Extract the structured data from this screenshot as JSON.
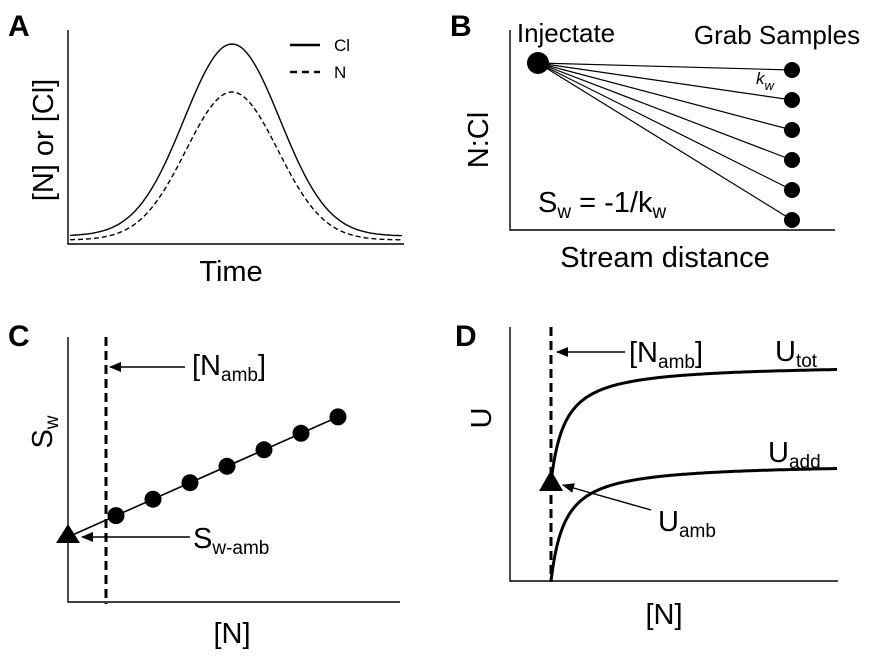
{
  "panelA": {
    "letter": "A",
    "ylabel": "[N] or [Cl]",
    "xlabel": "Time",
    "legend": [
      {
        "name": "Cl",
        "style": "solid"
      },
      {
        "name": "N",
        "style": "dashed"
      }
    ]
  },
  "panelB": {
    "letter": "B",
    "ylabel": "N:Cl",
    "xlabel": "Stream distance",
    "injectate_label": "Injectate",
    "samples_label": "Grab Samples",
    "kw_main": "k",
    "kw_sub": "w",
    "eq_s": "S",
    "eq_s_sub": "w",
    "eq_mid": " = -1/k",
    "eq_k_sub": "w",
    "sample_count": 6
  },
  "panelC": {
    "letter": "C",
    "ylabel_main": "S",
    "ylabel_sub": "w",
    "xlabel": "[N]",
    "namb_open": "[N",
    "namb_sub": "amb",
    "namb_close": "]",
    "swamb_main": "S",
    "swamb_sub": "w-amb",
    "point_count": 7
  },
  "panelD": {
    "letter": "D",
    "ylabel": "U",
    "xlabel": "[N]",
    "namb_open": "[N",
    "namb_sub": "amb",
    "namb_close": "]",
    "utot_main": "U",
    "utot_sub": "tot",
    "uadd_main": "U",
    "uadd_sub": "add",
    "uamb_main": "U",
    "uamb_sub": "amb"
  }
}
